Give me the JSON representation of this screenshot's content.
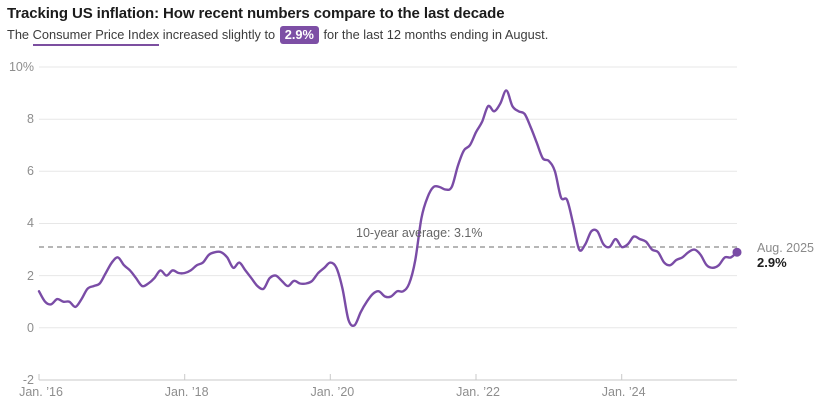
{
  "header": {
    "title": "Tracking US inflation: How recent numbers compare to the last decade",
    "subtitle": {
      "prefix": "The ",
      "link_text": "Consumer Price Index",
      "middle": " increased slightly to ",
      "badge": "2.9%",
      "suffix": " for the last 12 months ending in August."
    }
  },
  "annotation": {
    "label": "10-year average: 3.1%",
    "value": 3.1
  },
  "endpoint": {
    "date_label": "Aug. 2025",
    "value_label": "2.9%",
    "value": 2.9
  },
  "colors": {
    "line": "#7a4ca6",
    "badge": "#7d4fa5",
    "underline": "#7c4fa0",
    "gridline": "#e7e7e7",
    "axis_line": "#c9c9c9",
    "dashed_line": "#8a8a8a",
    "label_gray": "#8e8e8e"
  },
  "chart_data": {
    "type": "line",
    "title": "Tracking US inflation: How recent numbers compare to the last decade",
    "x_frequency": "monthly",
    "x_start": "2016-01",
    "x_end": "2025-08",
    "n_points": 116,
    "series": [
      {
        "name": "CPI 12-month percent change",
        "values": [
          1.4,
          1.0,
          0.9,
          1.1,
          1.0,
          1.0,
          0.8,
          1.1,
          1.5,
          1.6,
          1.7,
          2.1,
          2.5,
          2.7,
          2.4,
          2.2,
          1.9,
          1.6,
          1.7,
          1.9,
          2.2,
          2.0,
          2.2,
          2.1,
          2.1,
          2.2,
          2.4,
          2.5,
          2.8,
          2.9,
          2.9,
          2.7,
          2.3,
          2.5,
          2.2,
          1.9,
          1.6,
          1.5,
          1.9,
          2.0,
          1.8,
          1.6,
          1.8,
          1.7,
          1.7,
          1.8,
          2.1,
          2.3,
          2.5,
          2.3,
          1.5,
          0.3,
          0.1,
          0.6,
          1.0,
          1.3,
          1.4,
          1.2,
          1.2,
          1.4,
          1.4,
          1.7,
          2.6,
          4.2,
          5.0,
          5.4,
          5.4,
          5.3,
          5.4,
          6.2,
          6.8,
          7.0,
          7.5,
          7.9,
          8.5,
          8.3,
          8.6,
          9.1,
          8.5,
          8.3,
          8.2,
          7.7,
          7.1,
          6.5,
          6.4,
          6.0,
          5.0,
          4.9,
          4.0,
          3.0,
          3.2,
          3.7,
          3.7,
          3.2,
          3.1,
          3.4,
          3.1,
          3.2,
          3.5,
          3.4,
          3.3,
          3.0,
          2.9,
          2.5,
          2.4,
          2.6,
          2.7,
          2.9,
          3.0,
          2.8,
          2.4,
          2.3,
          2.4,
          2.7,
          2.7,
          2.9
        ]
      }
    ],
    "x_tick_labels": [
      "Jan. ’16",
      "Jan. ’18",
      "Jan. ’20",
      "Jan. ’22",
      "Jan. ’24"
    ],
    "x_tick_month_indices": [
      0,
      24,
      48,
      72,
      96
    ],
    "y_ticks": [
      -2,
      0,
      2,
      4,
      6,
      8,
      10
    ],
    "y_tick_labels": [
      "-2",
      "0",
      "2",
      "4",
      "6",
      "8",
      "10%"
    ],
    "ylim": [
      -2,
      10
    ],
    "grid": true,
    "legend": false,
    "reference_line": {
      "value": 3.1,
      "label": "10-year average: 3.1%"
    }
  }
}
